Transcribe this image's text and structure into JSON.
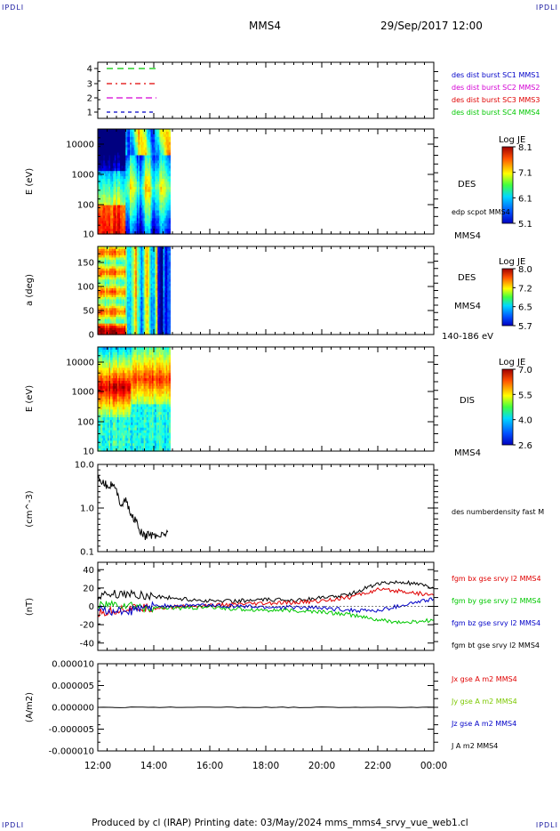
{
  "header": {
    "corner_left": "IPDLI",
    "corner_right": "IPDLI",
    "spacecraft": "MMS4",
    "datetime": "29/Sep/2017 12:00"
  },
  "footer": {
    "text": "Produced by cl (IRAP)   Printing date: 03/May/2024   mms_mms4_srvy_vue_web1.cl",
    "corner_left": "IPDLI",
    "corner_right": "IPDLI"
  },
  "x_axis": {
    "ticks": [
      "12:00",
      "14:00",
      "16:00",
      "18:00",
      "20:00",
      "22:00",
      "00:00"
    ]
  },
  "chart_data": [
    {
      "type": "line",
      "panel": "availability",
      "y_ticks": [
        "4",
        "3",
        "2",
        "1"
      ],
      "legend": [
        {
          "label": "des dist burst SC1 MMS1",
          "color": "#0000c8"
        },
        {
          "label": "des dist burst SC2 MMS2",
          "color": "#d400d4"
        },
        {
          "label": "des dist burst SC3 MMS3",
          "color": "#e00000"
        },
        {
          "label": "des dist burst SC4 MMS4",
          "color": "#00c800"
        }
      ],
      "series": [
        {
          "name": "des dist burst SC4 MMS4",
          "level": 4,
          "x": [
            "12:00",
            "14:00"
          ],
          "color": "#00c800"
        },
        {
          "name": "des dist burst SC3 MMS3",
          "level": 3,
          "x": [
            "12:00",
            "14:00"
          ],
          "color": "#e00000"
        },
        {
          "name": "des dist burst SC2 MMS2",
          "level": 2,
          "x": [
            "12:00",
            "14:00"
          ],
          "color": "#d400d4"
        },
        {
          "name": "des dist burst SC1 MMS1",
          "level": 1,
          "x": [
            "12:00",
            "14:00"
          ],
          "color": "#0000c8"
        }
      ]
    },
    {
      "type": "heatmap",
      "panel": "des-energy",
      "ylabel": "E (eV)",
      "y_ticks": [
        "10000",
        "1000",
        "100",
        "10"
      ],
      "log_scale": true,
      "x_range": [
        "12:00",
        "14:35"
      ],
      "right_labels": [
        "DES",
        "edp scpot MMS4",
        "MMS4"
      ],
      "colorbar": {
        "title": "Log JE",
        "ticks": [
          "8.1",
          "7.1",
          "6.1",
          "5.1"
        ],
        "range": [
          5.1,
          8.1
        ]
      }
    },
    {
      "type": "heatmap",
      "panel": "des-pitch",
      "ylabel": "a (deg)",
      "y_ticks": [
        "150",
        "100",
        "50",
        "0"
      ],
      "x_range": [
        "12:00",
        "14:35"
      ],
      "right_labels": [
        "DES",
        "MMS4",
        "140-186 eV"
      ],
      "colorbar": {
        "title": "Log JE",
        "ticks": [
          "8.0",
          "7.2",
          "6.5",
          "5.7"
        ],
        "range": [
          5.7,
          8.0
        ]
      }
    },
    {
      "type": "heatmap",
      "panel": "dis-energy",
      "ylabel": "E (eV)",
      "y_ticks": [
        "10000",
        "1000",
        "100",
        "10"
      ],
      "log_scale": true,
      "x_range": [
        "12:00",
        "14:35"
      ],
      "right_labels": [
        "DIS",
        "MMS4"
      ],
      "colorbar": {
        "title": "Log JE",
        "ticks": [
          "7.0",
          "5.5",
          "4.0",
          "2.6"
        ],
        "range": [
          2.6,
          7.0
        ]
      }
    },
    {
      "type": "line",
      "panel": "density",
      "ylabel": "(cm^-3)",
      "y_ticks": [
        "10.0",
        "1.0",
        "0.1"
      ],
      "log_scale": true,
      "ylim": [
        0.1,
        10
      ],
      "legend": [
        {
          "label": "des numberdensity fast M",
          "color": "#000000"
        }
      ],
      "series": [
        {
          "name": "des numberdensity fast M",
          "color": "#000000",
          "x": [
            "12:00",
            "12:10",
            "12:20",
            "12:30",
            "12:40",
            "12:50",
            "13:00",
            "13:10",
            "13:20",
            "13:30",
            "13:40",
            "13:50",
            "14:00",
            "14:10",
            "14:20",
            "14:30"
          ],
          "y": [
            5.0,
            4.2,
            3.2,
            3.6,
            2.4,
            1.2,
            1.6,
            0.7,
            0.55,
            0.3,
            0.22,
            0.25,
            0.23,
            0.24,
            0.25,
            0.28
          ]
        }
      ]
    },
    {
      "type": "line",
      "panel": "b-field",
      "ylabel": "(nT)",
      "y_ticks": [
        "40",
        "20",
        "0",
        "-20",
        "-40"
      ],
      "ylim": [
        -48,
        48
      ],
      "legend": [
        {
          "label": "fgm bx gse srvy l2 MMS4",
          "color": "#e00000"
        },
        {
          "label": "fgm by gse srvy l2 MMS4",
          "color": "#00c800"
        },
        {
          "label": "fgm bz gse srvy l2 MMS4",
          "color": "#0000c8"
        },
        {
          "label": "fgm bt gse srvy l2 MMS4",
          "color": "#000000"
        }
      ],
      "series": [
        {
          "name": "fgm bt gse srvy l2 MMS4",
          "color": "#000000",
          "x": [
            "12:00",
            "13:00",
            "14:00",
            "15:00",
            "16:00",
            "17:00",
            "18:00",
            "19:00",
            "20:00",
            "21:00",
            "22:00",
            "23:00",
            "00:00"
          ],
          "y": [
            12,
            14,
            11,
            8,
            6,
            6,
            7,
            7,
            9,
            13,
            25,
            26,
            20
          ]
        },
        {
          "name": "fgm bx gse srvy l2 MMS4",
          "color": "#e00000",
          "x": [
            "12:00",
            "13:00",
            "14:00",
            "15:00",
            "16:00",
            "17:00",
            "18:00",
            "19:00",
            "20:00",
            "21:00",
            "22:00",
            "23:00",
            "00:00"
          ],
          "y": [
            -8,
            -2,
            -2,
            0,
            1,
            2,
            3,
            4,
            6,
            10,
            18,
            16,
            12
          ]
        },
        {
          "name": "fgm by gse srvy l2 MMS4",
          "color": "#00c800",
          "x": [
            "12:00",
            "13:00",
            "14:00",
            "15:00",
            "16:00",
            "17:00",
            "18:00",
            "19:00",
            "20:00",
            "21:00",
            "22:00",
            "23:00",
            "00:00"
          ],
          "y": [
            2,
            1,
            -2,
            -2,
            -1,
            -3,
            -4,
            -5,
            -6,
            -9,
            -15,
            -18,
            -15
          ]
        },
        {
          "name": "fgm bz gse srvy l2 MMS4",
          "color": "#0000c8",
          "x": [
            "12:00",
            "13:00",
            "14:00",
            "15:00",
            "16:00",
            "17:00",
            "18:00",
            "19:00",
            "20:00",
            "21:00",
            "22:00",
            "23:00",
            "00:00"
          ],
          "y": [
            -4,
            -6,
            0,
            1,
            1,
            0,
            -1,
            -1,
            -2,
            -4,
            -5,
            2,
            8
          ]
        }
      ]
    },
    {
      "type": "line",
      "panel": "current",
      "ylabel": "(A/m2)",
      "y_ticks": [
        "0.000010",
        "0.000005",
        "0.000000",
        "-0.000005",
        "-0.000010"
      ],
      "ylim": [
        -1e-05,
        1e-05
      ],
      "legend": [
        {
          "label": "Jx gse A m2 MMS4",
          "color": "#e00000"
        },
        {
          "label": "Jy gse A m2 MMS4",
          "color": "#7cc800"
        },
        {
          "label": "Jz gse A m2 MMS4",
          "color": "#0000c8"
        },
        {
          "label": "J A m2 MMS4",
          "color": "#000000"
        }
      ],
      "series": [
        {
          "name": "J A m2 MMS4",
          "color": "#000000",
          "x": [
            "12:00",
            "14:00",
            "16:00",
            "18:00",
            "20:00",
            "22:00",
            "00:00"
          ],
          "y": [
            0,
            0,
            0,
            0,
            0,
            0,
            0
          ]
        }
      ]
    }
  ]
}
